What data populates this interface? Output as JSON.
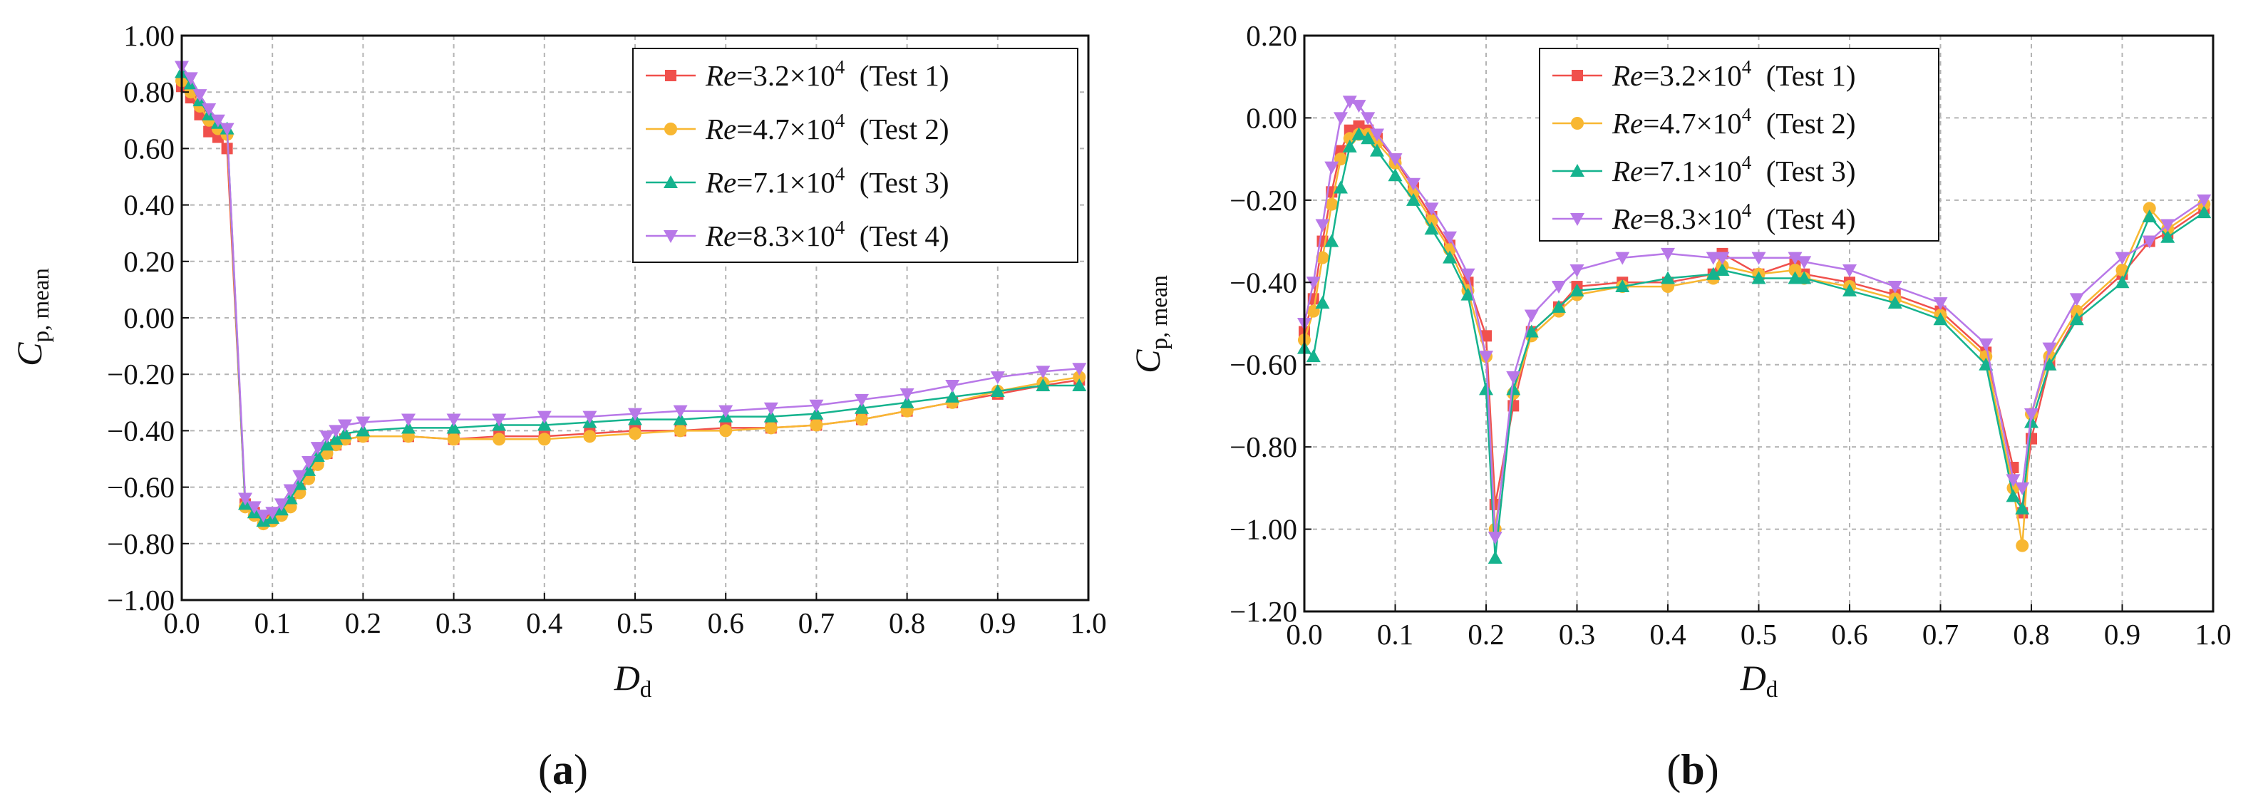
{
  "colors": {
    "test1": "#F0504C",
    "test2": "#F8B732",
    "test3": "#15B38E",
    "test4": "#B878E8"
  },
  "chart_data": [
    {
      "type": "line",
      "panel_label_text": "a",
      "xlabel": "D",
      "xlabel_sub": "d",
      "ylabel": "C",
      "ylabel_sub": "p, mean",
      "xlim": [
        0.0,
        1.0
      ],
      "ylim": [
        -1.0,
        1.0
      ],
      "xticks": [
        "0.0",
        "0.1",
        "0.2",
        "0.3",
        "0.4",
        "0.5",
        "0.6",
        "0.7",
        "0.8",
        "0.9",
        "1.0"
      ],
      "yticks": [
        "1.00",
        "0.80",
        "0.60",
        "0.40",
        "0.20",
        "0.00",
        "−0.20",
        "−0.40",
        "−0.60",
        "−0.80",
        "−1.00"
      ],
      "x": [
        0.0,
        0.01,
        0.02,
        0.03,
        0.04,
        0.05,
        0.07,
        0.08,
        0.09,
        0.1,
        0.11,
        0.12,
        0.13,
        0.14,
        0.15,
        0.16,
        0.17,
        0.18,
        0.2,
        0.25,
        0.3,
        0.35,
        0.4,
        0.45,
        0.5,
        0.55,
        0.6,
        0.65,
        0.7,
        0.75,
        0.8,
        0.85,
        0.9,
        0.95,
        0.99
      ],
      "legend": [
        {
          "prefix": "Re",
          "eq": "=3.2×10",
          "exp": "4",
          "test": "(Test 1)"
        },
        {
          "prefix": "Re",
          "eq": "=4.7×10",
          "exp": "4",
          "test": "(Test 2)"
        },
        {
          "prefix": "Re",
          "eq": "=7.1×10",
          "exp": "4",
          "test": "(Test 3)"
        },
        {
          "prefix": "Re",
          "eq": "=8.3×10",
          "exp": "4",
          "test": "(Test 4)"
        }
      ],
      "series": [
        {
          "name": "Re=3.2×10^4 (Test 1)",
          "marker": "square",
          "values": [
            0.82,
            0.78,
            0.72,
            0.66,
            0.64,
            0.6,
            -0.66,
            -0.69,
            -0.72,
            -0.71,
            -0.69,
            -0.66,
            -0.61,
            -0.56,
            -0.51,
            -0.48,
            -0.45,
            -0.43,
            -0.42,
            -0.42,
            -0.43,
            -0.42,
            -0.42,
            -0.41,
            -0.4,
            -0.4,
            -0.39,
            -0.39,
            -0.38,
            -0.36,
            -0.33,
            -0.3,
            -0.27,
            -0.24,
            -0.22
          ]
        },
        {
          "name": "Re=4.7×10^4 (Test 2)",
          "marker": "circle",
          "values": [
            0.84,
            0.8,
            0.75,
            0.7,
            0.67,
            0.65,
            -0.67,
            -0.7,
            -0.73,
            -0.72,
            -0.7,
            -0.67,
            -0.62,
            -0.57,
            -0.52,
            -0.48,
            -0.45,
            -0.43,
            -0.42,
            -0.42,
            -0.43,
            -0.43,
            -0.43,
            -0.42,
            -0.41,
            -0.4,
            -0.4,
            -0.39,
            -0.38,
            -0.36,
            -0.33,
            -0.3,
            -0.26,
            -0.23,
            -0.21
          ]
        },
        {
          "name": "Re=7.1×10^4 (Test 3)",
          "marker": "triangle-up",
          "values": [
            0.87,
            0.83,
            0.77,
            0.72,
            0.69,
            0.67,
            -0.66,
            -0.69,
            -0.72,
            -0.71,
            -0.68,
            -0.64,
            -0.59,
            -0.54,
            -0.49,
            -0.45,
            -0.43,
            -0.41,
            -0.4,
            -0.39,
            -0.39,
            -0.38,
            -0.38,
            -0.37,
            -0.36,
            -0.36,
            -0.35,
            -0.35,
            -0.34,
            -0.32,
            -0.3,
            -0.28,
            -0.26,
            -0.24,
            -0.24
          ]
        },
        {
          "name": "Re=8.3×10^4 (Test 4)",
          "marker": "triangle-down",
          "values": [
            0.89,
            0.85,
            0.79,
            0.74,
            0.7,
            0.67,
            -0.64,
            -0.67,
            -0.7,
            -0.69,
            -0.66,
            -0.61,
            -0.56,
            -0.51,
            -0.46,
            -0.42,
            -0.4,
            -0.38,
            -0.37,
            -0.36,
            -0.36,
            -0.36,
            -0.35,
            -0.35,
            -0.34,
            -0.33,
            -0.33,
            -0.32,
            -0.31,
            -0.29,
            -0.27,
            -0.24,
            -0.21,
            -0.19,
            -0.18
          ]
        }
      ]
    },
    {
      "type": "line",
      "panel_label_text": "b",
      "xlabel": "D",
      "xlabel_sub": "d",
      "ylabel": "C",
      "ylabel_sub": "p, mean",
      "xlim": [
        0.0,
        1.0
      ],
      "ylim": [
        -1.2,
        0.2
      ],
      "xticks": [
        "0.0",
        "0.1",
        "0.2",
        "0.3",
        "0.4",
        "0.5",
        "0.6",
        "0.7",
        "0.8",
        "0.9",
        "1.0"
      ],
      "yticks": [
        "0.20",
        "0.00",
        "−0.20",
        "−0.40",
        "−0.60",
        "−0.80",
        "−1.00",
        "−1.20"
      ],
      "x": [
        0.0,
        0.01,
        0.02,
        0.03,
        0.04,
        0.05,
        0.06,
        0.07,
        0.08,
        0.1,
        0.12,
        0.14,
        0.16,
        0.18,
        0.2,
        0.21,
        0.23,
        0.25,
        0.28,
        0.3,
        0.35,
        0.4,
        0.45,
        0.46,
        0.5,
        0.54,
        0.55,
        0.6,
        0.65,
        0.7,
        0.75,
        0.78,
        0.79,
        0.8,
        0.82,
        0.85,
        0.9,
        0.93,
        0.95,
        0.99
      ],
      "legend": [
        {
          "prefix": "Re",
          "eq": "=3.2×10",
          "exp": "4",
          "test": "(Test 1)"
        },
        {
          "prefix": "Re",
          "eq": "=4.7×10",
          "exp": "4",
          "test": "(Test 2)"
        },
        {
          "prefix": "Re",
          "eq": "=7.1×10",
          "exp": "4",
          "test": "(Test 3)"
        },
        {
          "prefix": "Re",
          "eq": "=8.3×10",
          "exp": "4",
          "test": "(Test 4)"
        }
      ],
      "series": [
        {
          "name": "Re=3.2×10^4 (Test 1)",
          "marker": "square",
          "values": [
            -0.52,
            -0.44,
            -0.3,
            -0.18,
            -0.08,
            -0.03,
            -0.02,
            -0.03,
            -0.05,
            -0.1,
            -0.17,
            -0.24,
            -0.31,
            -0.4,
            -0.53,
            -0.94,
            -0.7,
            -0.52,
            -0.46,
            -0.41,
            -0.4,
            -0.4,
            -0.38,
            -0.33,
            -0.38,
            -0.35,
            -0.38,
            -0.4,
            -0.43,
            -0.47,
            -0.57,
            -0.85,
            -0.96,
            -0.78,
            -0.6,
            -0.48,
            -0.38,
            -0.3,
            -0.28,
            -0.22
          ]
        },
        {
          "name": "Re=4.7×10^4 (Test 2)",
          "marker": "circle",
          "values": [
            -0.54,
            -0.47,
            -0.34,
            -0.21,
            -0.1,
            -0.05,
            -0.04,
            -0.04,
            -0.06,
            -0.11,
            -0.18,
            -0.25,
            -0.32,
            -0.42,
            -0.58,
            -1.0,
            -0.67,
            -0.53,
            -0.47,
            -0.43,
            -0.41,
            -0.41,
            -0.39,
            -0.36,
            -0.38,
            -0.37,
            -0.39,
            -0.41,
            -0.44,
            -0.48,
            -0.58,
            -0.9,
            -1.04,
            -0.72,
            -0.58,
            -0.47,
            -0.37,
            -0.22,
            -0.27,
            -0.21
          ]
        },
        {
          "name": "Re=7.1×10^4 (Test 3)",
          "marker": "triangle-up",
          "values": [
            -0.56,
            -0.58,
            -0.45,
            -0.3,
            -0.17,
            -0.07,
            -0.04,
            -0.05,
            -0.08,
            -0.14,
            -0.2,
            -0.27,
            -0.34,
            -0.43,
            -0.66,
            -1.07,
            -0.66,
            -0.52,
            -0.46,
            -0.42,
            -0.41,
            -0.39,
            -0.38,
            -0.37,
            -0.39,
            -0.39,
            -0.39,
            -0.42,
            -0.45,
            -0.49,
            -0.6,
            -0.92,
            -0.95,
            -0.74,
            -0.6,
            -0.49,
            -0.4,
            -0.24,
            -0.29,
            -0.23
          ]
        },
        {
          "name": "Re=8.3×10^4 (Test 4)",
          "marker": "triangle-down",
          "values": [
            -0.5,
            -0.4,
            -0.26,
            -0.12,
            0.0,
            0.04,
            0.03,
            0.0,
            -0.04,
            -0.1,
            -0.16,
            -0.22,
            -0.29,
            -0.38,
            -0.58,
            -1.02,
            -0.63,
            -0.48,
            -0.41,
            -0.37,
            -0.34,
            -0.33,
            -0.34,
            -0.34,
            -0.34,
            -0.34,
            -0.35,
            -0.37,
            -0.41,
            -0.45,
            -0.55,
            -0.88,
            -0.9,
            -0.72,
            -0.56,
            -0.44,
            -0.34,
            -0.3,
            -0.26,
            -0.2
          ]
        }
      ]
    }
  ]
}
